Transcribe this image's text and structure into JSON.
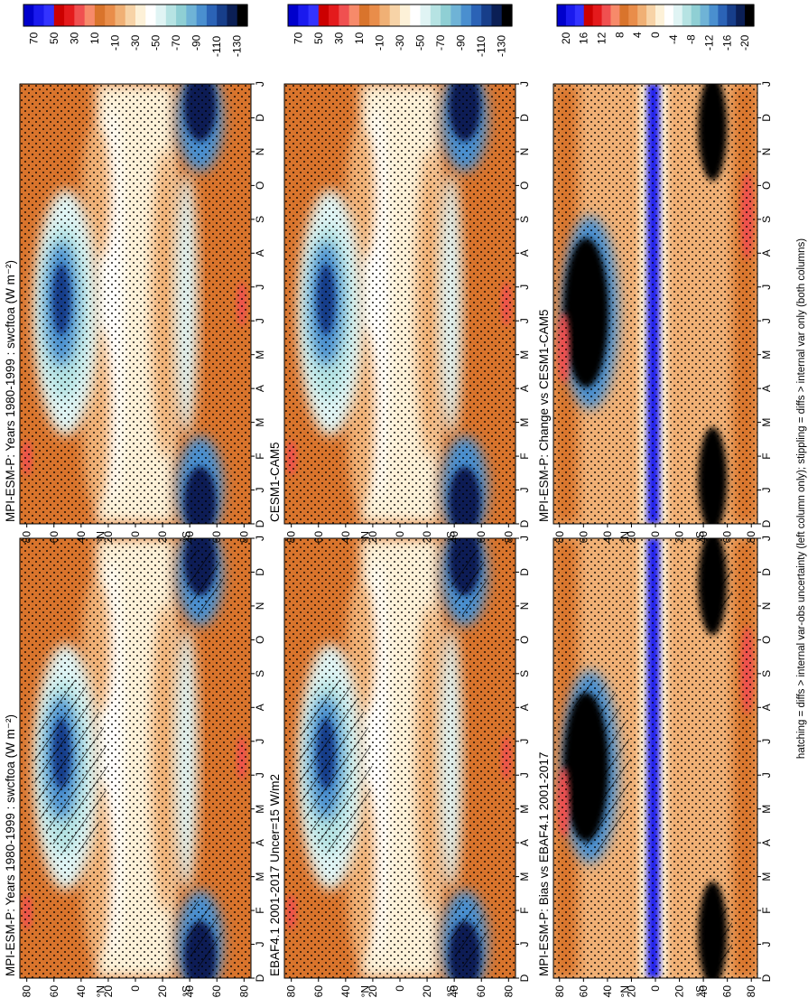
{
  "figure": {
    "footer": "hatching = diffs > internal var-obs uncertainty (left column only); stippling = diffs > internal var only (both columns)",
    "degree_label": "°"
  },
  "chart_data": [
    {
      "type": "heatmap",
      "title": "MPI-ESM-P: Years 1980-1999 : swcftoa (W m⁻²)",
      "x_ticks": [
        "D",
        "J",
        "F",
        "M",
        "A",
        "M",
        "J",
        "J",
        "A",
        "S",
        "O",
        "N",
        "D",
        "J"
      ],
      "y_ticks": [
        "80",
        "60",
        "40",
        "20",
        "0",
        "20",
        "40",
        "60",
        "80"
      ],
      "y_hemi": [
        "N",
        "S"
      ],
      "colorbar": [
        "70",
        "50",
        "30",
        "10",
        "-10",
        "-30",
        "-50",
        "-70",
        "-90",
        "-110",
        "-130"
      ],
      "palette": "abs",
      "hatched": true
    },
    {
      "type": "heatmap",
      "title": "MPI-ESM-P: Years 1980-1999 : swcftoa (W m⁻²)",
      "x_ticks": [
        "D",
        "J",
        "F",
        "M",
        "A",
        "M",
        "J",
        "J",
        "A",
        "S",
        "O",
        "N",
        "D",
        "J"
      ],
      "y_ticks": [
        "80",
        "60",
        "40",
        "20",
        "0",
        "20",
        "40",
        "60",
        "80"
      ],
      "y_hemi": [
        "N",
        "S"
      ],
      "colorbar": [
        "70",
        "50",
        "30",
        "10",
        "-10",
        "-30",
        "-50",
        "-70",
        "-90",
        "-110",
        "-130"
      ],
      "palette": "abs",
      "hatched": false
    },
    {
      "type": "heatmap",
      "title": "EBAF4.1 2001-2017 Uncer=15 W/m2",
      "x_ticks": [
        "D",
        "J",
        "F",
        "M",
        "A",
        "M",
        "J",
        "J",
        "A",
        "S",
        "O",
        "N",
        "D",
        "J"
      ],
      "y_ticks": [
        "80",
        "60",
        "40",
        "20",
        "0",
        "20",
        "40",
        "60",
        "80"
      ],
      "y_hemi": [
        "N",
        "S"
      ],
      "colorbar": [
        "70",
        "50",
        "30",
        "10",
        "-10",
        "-30",
        "-50",
        "-70",
        "-90",
        "-110",
        "-130"
      ],
      "palette": "abs",
      "hatched": true
    },
    {
      "type": "heatmap",
      "title": "CESM1-CAM5",
      "x_ticks": [
        "D",
        "J",
        "F",
        "M",
        "A",
        "M",
        "J",
        "J",
        "A",
        "S",
        "O",
        "N",
        "D",
        "J"
      ],
      "y_ticks": [
        "80",
        "60",
        "40",
        "20",
        "0",
        "20",
        "40",
        "60",
        "80"
      ],
      "y_hemi": [
        "N",
        "S"
      ],
      "colorbar": [
        "70",
        "50",
        "30",
        "10",
        "-10",
        "-30",
        "-50",
        "-70",
        "-90",
        "-110",
        "-130"
      ],
      "palette": "abs",
      "hatched": false
    },
    {
      "type": "heatmap",
      "title": "MPI-ESM-P: Bias vs EBAF4.1 2001-2017",
      "x_ticks": [
        "D",
        "J",
        "F",
        "M",
        "A",
        "M",
        "J",
        "J",
        "A",
        "S",
        "O",
        "N",
        "D",
        "J"
      ],
      "y_ticks": [
        "80",
        "60",
        "40",
        "20",
        "0",
        "20",
        "40",
        "60",
        "80"
      ],
      "y_hemi": [
        "N",
        "S"
      ],
      "colorbar": [
        "20",
        "16",
        "12",
        "8",
        "4",
        "0",
        "-4",
        "-8",
        "-12",
        "-16",
        "-20"
      ],
      "palette": "diff",
      "hatched": true
    },
    {
      "type": "heatmap",
      "title": "MPI-ESM-P: Change vs CESM1-CAM5",
      "x_ticks": [
        "D",
        "J",
        "F",
        "M",
        "A",
        "M",
        "J",
        "J",
        "A",
        "S",
        "O",
        "N",
        "D",
        "J"
      ],
      "y_ticks": [
        "80",
        "60",
        "40",
        "20",
        "0",
        "20",
        "40",
        "60",
        "80"
      ],
      "y_hemi": [
        "N",
        "S"
      ],
      "colorbar": [
        "20",
        "16",
        "12",
        "8",
        "4",
        "0",
        "-4",
        "-8",
        "-12",
        "-16",
        "-20"
      ],
      "palette": "diff",
      "hatched": false
    }
  ],
  "colors": {
    "cbar_abs": [
      "#0000cc",
      "#1a1aee",
      "#3333ff",
      "#cc0000",
      "#e41a1c",
      "#f05050",
      "#f78a6a",
      "#d9742c",
      "#e98d4a",
      "#f0b075",
      "#f7d3a7",
      "#fdf1d8",
      "#ffffff",
      "#e0f4f4",
      "#b6e3e3",
      "#8fcfd4",
      "#6fb3d6",
      "#4a8fcf",
      "#2b63b6",
      "#173e8a",
      "#0b1f55",
      "#000000"
    ],
    "cbar_diff": [
      "#0000cc",
      "#1a1aee",
      "#3333ff",
      "#cc0000",
      "#e41a1c",
      "#f05050",
      "#f78a6a",
      "#d9742c",
      "#e98d4a",
      "#f0b075",
      "#f7d3a7",
      "#fdf1d8",
      "#ffffff",
      "#e0f4f4",
      "#b6e3e3",
      "#8fcfd4",
      "#6fb3d6",
      "#4a8fcf",
      "#2b63b6",
      "#173e8a",
      "#0b1f55",
      "#000000"
    ],
    "ocean_orange": "#d9742c",
    "light_orange": "#f0b075",
    "cream": "#fdf1d8",
    "red": "#f05050",
    "blue_dark": "#173e8a",
    "blue_mid": "#4a8fcf",
    "blue_light": "#b6e3e3",
    "navy": "#0b1f55",
    "black": "#000000",
    "pure_blue": "#1a1aee"
  }
}
